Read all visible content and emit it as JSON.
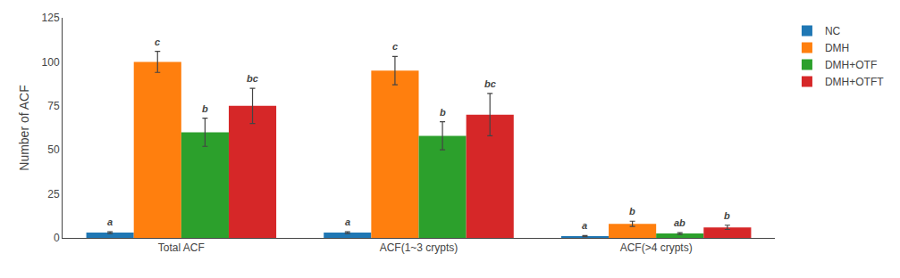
{
  "chart_data": {
    "type": "bar",
    "categories": [
      "Total ACF",
      "ACF(1~3 crypts)",
      "ACF(>4 crypts)"
    ],
    "series": [
      {
        "name": "NC",
        "values": [
          3,
          3,
          1
        ],
        "errors": [
          0.5,
          0.5,
          0.3
        ],
        "significance": [
          "a",
          "a",
          "a"
        ]
      },
      {
        "name": "DMH",
        "values": [
          100,
          95,
          8
        ],
        "errors": [
          6,
          8,
          1.5
        ],
        "significance": [
          "c",
          "c",
          "b"
        ]
      },
      {
        "name": "DMH+OTF",
        "values": [
          60,
          58,
          2.5
        ],
        "errors": [
          8,
          8,
          0.5
        ],
        "significance": [
          "b",
          "b",
          "ab"
        ]
      },
      {
        "name": "DMH+OTFT",
        "values": [
          75,
          70,
          6
        ],
        "errors": [
          10,
          12,
          1.2
        ],
        "significance": [
          "bc",
          "bc",
          "b"
        ]
      }
    ],
    "ylabel": "Number of ACF",
    "ylim": [
      0,
      125
    ],
    "yticks": [
      0,
      25,
      50,
      75,
      100,
      125
    ],
    "grid": false,
    "legend": "right"
  }
}
